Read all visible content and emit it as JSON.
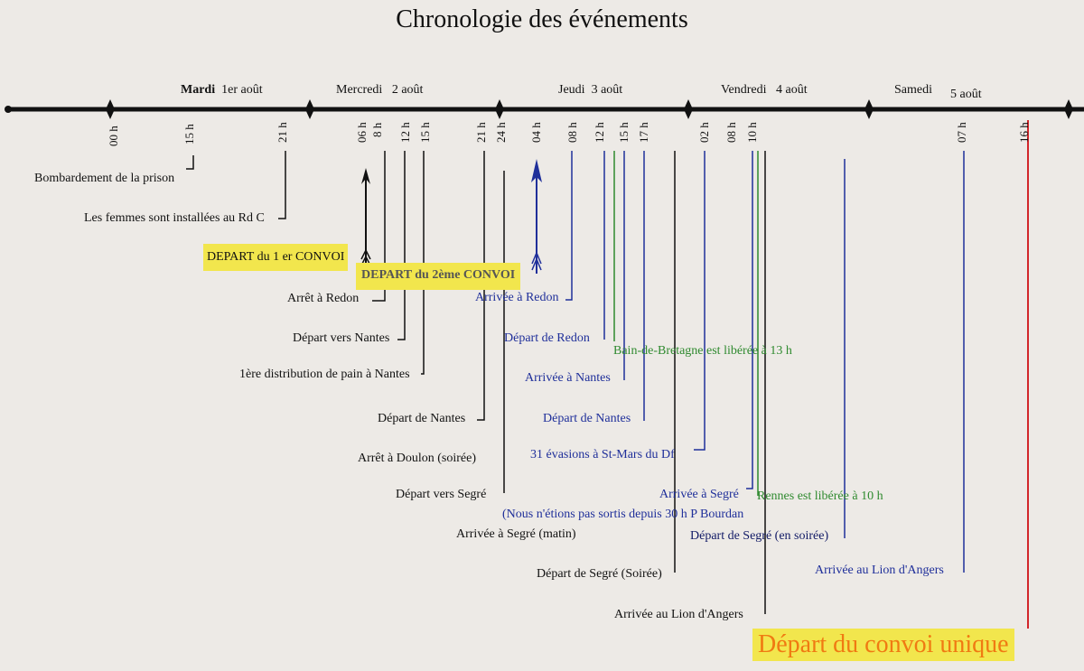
{
  "title": "Chronologie des événements",
  "colors": {
    "black": "#111111",
    "blue": "#1f2f9a",
    "green": "#2f8a2f",
    "red": "#d2262a",
    "highlight": "#f2e64d",
    "orange": "#f07a12"
  },
  "days": [
    {
      "name": "Mardi",
      "date": "1er août"
    },
    {
      "name": "Mercredi",
      "date": "2 août"
    },
    {
      "name": "Jeudi",
      "date": "3 août"
    },
    {
      "name": "Vendredi",
      "date": "4 août"
    },
    {
      "name": "Samedi",
      "date": "5 août"
    }
  ],
  "ticks": [
    "00 h",
    "15 h",
    "21 h",
    "06 h",
    "8 h",
    "12 h",
    "15 h",
    "21 h",
    "24 h",
    "04 h",
    "08 h",
    "12 h",
    "15 h",
    "17 h",
    "02 h",
    "08 h",
    "10 h",
    "07 h",
    "16 h"
  ],
  "events": [
    "Bombardement de la prison",
    "Les femmes sont installées au Rd C",
    "DEPART du 1 er CONVOI",
    "DEPART du 2ème CONVOI",
    "Arrêt à Redon",
    "Arrivée à Redon",
    "Départ vers Nantes",
    "Départ de Redon",
    "Bain-de-Bretagne est libérée à 13 h",
    "1ère distribution de pain à Nantes",
    "Arrivée à Nantes",
    "Départ de Nantes",
    "Départ de Nantes",
    "Arrêt à Doulon (soirée)",
    "31 évasions à St-Mars du Df",
    "Départ vers Segré",
    "Arrivée à Segré",
    "Rennes est libérée à 10 h",
    "(Nous n'étions pas sortis depuis 30 h P Bourdan",
    "Arrivée à Segré (matin)",
    "Départ de Segré (en soirée)",
    "Départ de Segré (Soirée)",
    "Arrivée au Lion d'Angers",
    "Arrivée au Lion d'Angers",
    "Départ du convoi unique"
  ]
}
